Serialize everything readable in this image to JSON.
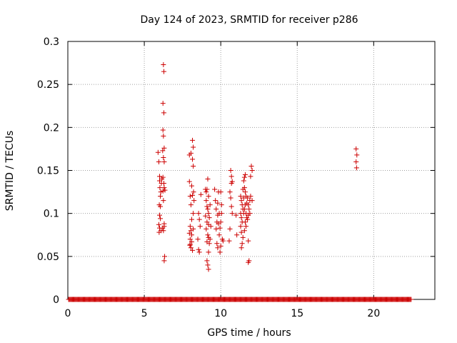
{
  "chart_data": {
    "type": "scatter",
    "title": "Day 124 of 2023, SRMTID for receiver p286",
    "xlabel": "GPS time / hours",
    "ylabel": "SRMTID / TECUs",
    "xlim": [
      0,
      24
    ],
    "ylim": [
      0,
      0.3
    ],
    "xticks": [
      0,
      5,
      10,
      15,
      20
    ],
    "xtick_labels": [
      "0",
      "5",
      "10",
      "15",
      "20"
    ],
    "yticks": [
      0,
      0.05,
      0.1,
      0.15,
      0.2,
      0.25,
      0.3
    ],
    "ytick_labels": [
      "0",
      "0.05",
      "0.1",
      "0.15",
      "0.2",
      "0.25",
      "0.3"
    ],
    "grid": true,
    "marker": "+",
    "series": [
      {
        "name": "SRMTID",
        "color": "#cc0000",
        "zero_baseline": {
          "start": 0.05,
          "end": 22.45,
          "step": 0.05,
          "y": 0
        },
        "points": [
          [
            5.9,
            0.171
          ],
          [
            5.95,
            0.16
          ],
          [
            6.0,
            0.143
          ],
          [
            6.0,
            0.138
          ],
          [
            6.02,
            0.13
          ],
          [
            6.05,
            0.12
          ],
          [
            5.98,
            0.11
          ],
          [
            6.05,
            0.108
          ],
          [
            6.0,
            0.098
          ],
          [
            6.05,
            0.094
          ],
          [
            5.95,
            0.087
          ],
          [
            6.0,
            0.083
          ],
          [
            6.1,
            0.08
          ],
          [
            5.97,
            0.078
          ],
          [
            6.08,
            0.125
          ],
          [
            6.12,
            0.135
          ],
          [
            6.15,
            0.14
          ],
          [
            6.25,
            0.273
          ],
          [
            6.28,
            0.265
          ],
          [
            6.22,
            0.228
          ],
          [
            6.28,
            0.217
          ],
          [
            6.22,
            0.197
          ],
          [
            6.25,
            0.19
          ],
          [
            6.3,
            0.176
          ],
          [
            6.2,
            0.173
          ],
          [
            6.25,
            0.165
          ],
          [
            6.3,
            0.16
          ],
          [
            6.22,
            0.142
          ],
          [
            6.28,
            0.135
          ],
          [
            6.3,
            0.13
          ],
          [
            6.22,
            0.126
          ],
          [
            6.35,
            0.127
          ],
          [
            6.25,
            0.115
          ],
          [
            6.3,
            0.088
          ],
          [
            6.3,
            0.085
          ],
          [
            6.33,
            0.05
          ],
          [
            6.3,
            0.045
          ],
          [
            6.2,
            0.083
          ],
          [
            6.25,
            0.08
          ],
          [
            7.95,
            0.168
          ],
          [
            8.05,
            0.17
          ],
          [
            8.15,
            0.185
          ],
          [
            8.2,
            0.177
          ],
          [
            8.15,
            0.163
          ],
          [
            8.2,
            0.155
          ],
          [
            7.95,
            0.137
          ],
          [
            8.1,
            0.132
          ],
          [
            8.0,
            0.12
          ],
          [
            8.15,
            0.121
          ],
          [
            8.05,
            0.11
          ],
          [
            8.2,
            0.1
          ],
          [
            8.1,
            0.093
          ],
          [
            8.0,
            0.085
          ],
          [
            8.05,
            0.08
          ],
          [
            7.95,
            0.077
          ],
          [
            8.1,
            0.075
          ],
          [
            8.0,
            0.07
          ],
          [
            8.1,
            0.067
          ],
          [
            7.98,
            0.063
          ],
          [
            8.05,
            0.06
          ],
          [
            8.15,
            0.057
          ],
          [
            8.0,
            0.064
          ],
          [
            8.2,
            0.082
          ],
          [
            8.22,
            0.125
          ],
          [
            8.25,
            0.115
          ],
          [
            8.55,
            0.1
          ],
          [
            8.6,
            0.093
          ],
          [
            8.65,
            0.085
          ],
          [
            8.5,
            0.07
          ],
          [
            8.55,
            0.058
          ],
          [
            8.6,
            0.055
          ],
          [
            8.7,
            0.122
          ],
          [
            9.0,
            0.128
          ],
          [
            9.05,
            0.125
          ],
          [
            9.15,
            0.14
          ],
          [
            9.1,
            0.128
          ],
          [
            9.2,
            0.12
          ],
          [
            9.05,
            0.115
          ],
          [
            9.1,
            0.108
          ],
          [
            9.15,
            0.105
          ],
          [
            9.2,
            0.1
          ],
          [
            9.0,
            0.097
          ],
          [
            9.1,
            0.09
          ],
          [
            9.2,
            0.087
          ],
          [
            9.05,
            0.082
          ],
          [
            9.15,
            0.075
          ],
          [
            9.2,
            0.072
          ],
          [
            9.1,
            0.067
          ],
          [
            9.25,
            0.065
          ],
          [
            9.2,
            0.055
          ],
          [
            9.1,
            0.045
          ],
          [
            9.15,
            0.04
          ],
          [
            9.2,
            0.035
          ],
          [
            9.3,
            0.11
          ],
          [
            9.35,
            0.085
          ],
          [
            9.3,
            0.07
          ],
          [
            9.25,
            0.095
          ],
          [
            9.6,
            0.128
          ],
          [
            9.65,
            0.115
          ],
          [
            9.7,
            0.105
          ],
          [
            9.8,
            0.098
          ],
          [
            9.75,
            0.09
          ],
          [
            9.85,
            0.125
          ],
          [
            9.8,
            0.112
          ],
          [
            9.9,
            0.1
          ],
          [
            9.85,
            0.088
          ],
          [
            9.9,
            0.075
          ],
          [
            9.75,
            0.065
          ],
          [
            9.8,
            0.06
          ],
          [
            9.95,
            0.055
          ],
          [
            10.0,
            0.062
          ],
          [
            9.95,
            0.083
          ],
          [
            10.0,
            0.09
          ],
          [
            10.05,
            0.1
          ],
          [
            10.0,
            0.125
          ],
          [
            10.05,
            0.11
          ],
          [
            9.7,
            0.082
          ],
          [
            10.1,
            0.07
          ],
          [
            10.15,
            0.068
          ],
          [
            10.65,
            0.15
          ],
          [
            10.7,
            0.143
          ],
          [
            10.75,
            0.137
          ],
          [
            10.6,
            0.125
          ],
          [
            10.65,
            0.118
          ],
          [
            10.7,
            0.108
          ],
          [
            10.75,
            0.1
          ],
          [
            10.6,
            0.082
          ],
          [
            10.55,
            0.068
          ],
          [
            10.7,
            0.135
          ],
          [
            11.0,
            0.098
          ],
          [
            11.05,
            0.075
          ],
          [
            11.3,
            0.12
          ],
          [
            11.35,
            0.115
          ],
          [
            11.4,
            0.11
          ],
          [
            11.45,
            0.105
          ],
          [
            11.3,
            0.1
          ],
          [
            11.35,
            0.095
          ],
          [
            11.4,
            0.09
          ],
          [
            11.3,
            0.085
          ],
          [
            11.35,
            0.078
          ],
          [
            11.45,
            0.072
          ],
          [
            11.4,
            0.065
          ],
          [
            11.35,
            0.06
          ],
          [
            11.5,
            0.138
          ],
          [
            11.55,
            0.142
          ],
          [
            11.6,
            0.145
          ],
          [
            11.55,
            0.13
          ],
          [
            11.6,
            0.125
          ],
          [
            11.65,
            0.12
          ],
          [
            11.5,
            0.118
          ],
          [
            11.6,
            0.11
          ],
          [
            11.55,
            0.105
          ],
          [
            11.65,
            0.1
          ],
          [
            11.7,
            0.095
          ],
          [
            11.6,
            0.09
          ],
          [
            11.65,
            0.085
          ],
          [
            11.55,
            0.08
          ],
          [
            11.7,
            0.112
          ],
          [
            11.75,
            0.118
          ],
          [
            11.8,
            0.11
          ],
          [
            11.85,
            0.105
          ],
          [
            11.8,
            0.098
          ],
          [
            11.75,
            0.093
          ],
          [
            11.9,
            0.115
          ],
          [
            11.95,
            0.12
          ],
          [
            11.8,
            0.068
          ],
          [
            11.85,
            0.045
          ],
          [
            11.8,
            0.043
          ],
          [
            11.9,
            0.1
          ],
          [
            12.0,
            0.155
          ],
          [
            12.05,
            0.15
          ],
          [
            11.95,
            0.143
          ],
          [
            12.05,
            0.115
          ],
          [
            11.45,
            0.128
          ],
          [
            11.5,
            0.1
          ]
        ],
        "points_late": [
          [
            18.85,
            0.175
          ],
          [
            18.9,
            0.168
          ],
          [
            18.85,
            0.16
          ],
          [
            18.88,
            0.153
          ]
        ]
      }
    ]
  }
}
